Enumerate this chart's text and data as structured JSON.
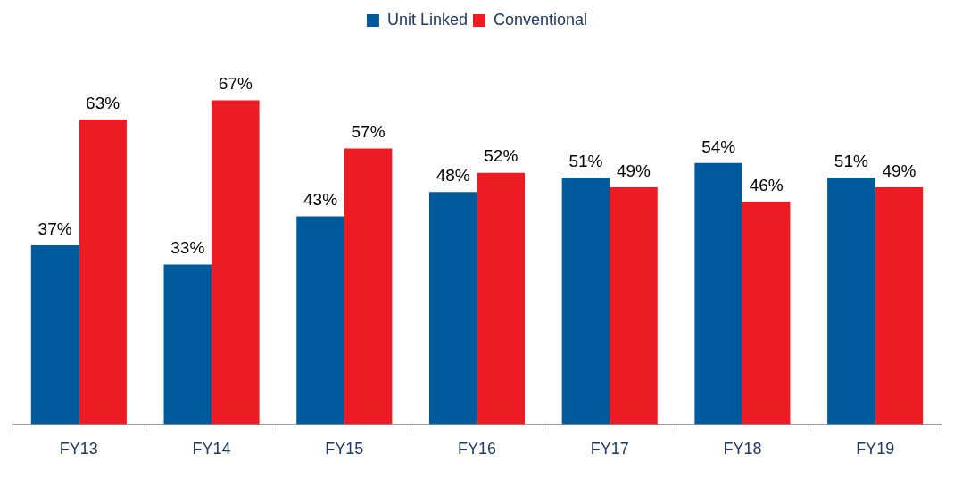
{
  "chart_data": {
    "type": "bar",
    "categories": [
      "FY13",
      "FY14",
      "FY15",
      "FY16",
      "FY17",
      "FY18",
      "FY19"
    ],
    "series": [
      {
        "name": "Unit Linked",
        "color": "#005a9c",
        "values": [
          37,
          33,
          43,
          48,
          51,
          54,
          51
        ],
        "value_labels": [
          "37%",
          "33%",
          "43%",
          "48%",
          "51%",
          "54%",
          "51%"
        ]
      },
      {
        "name": "Conventional",
        "color": "#ed1c24",
        "values": [
          63,
          67,
          57,
          52,
          49,
          46,
          49
        ],
        "value_labels": [
          "63%",
          "67%",
          "57%",
          "52%",
          "49%",
          "46%",
          "49%"
        ]
      }
    ],
    "legend": "top",
    "grid": false
  }
}
